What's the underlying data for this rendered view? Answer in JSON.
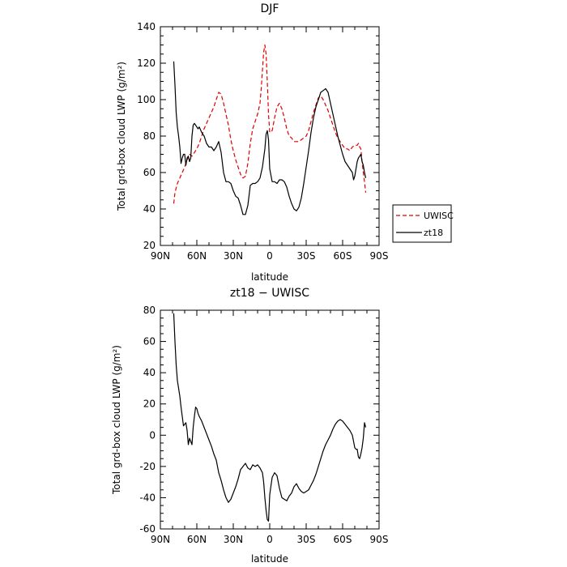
{
  "chart_data": [
    {
      "type": "line",
      "title": "DJF",
      "xlabel": "latitude",
      "ylabel": "Total grd-box cloud LWP (g/m²)",
      "ylim": [
        20,
        140
      ],
      "yticks": [
        20,
        40,
        60,
        80,
        100,
        120,
        140
      ],
      "xlim": [
        90,
        -90
      ],
      "xticks": [
        90,
        60,
        30,
        0,
        -30,
        -60,
        -90
      ],
      "xticklabels": [
        "90N",
        "60N",
        "30N",
        "0",
        "30S",
        "60S",
        "90S"
      ],
      "legend": "outside-right",
      "series": [
        {
          "name": "UWISC",
          "color": "#e00000",
          "dash": true,
          "x": [
            79,
            78,
            76,
            74,
            72,
            70,
            68,
            66,
            64,
            62,
            60,
            58,
            56,
            54,
            52,
            50,
            48,
            46,
            44,
            42,
            40,
            38,
            36,
            34,
            32,
            30,
            28,
            26,
            24,
            22,
            20,
            18,
            16,
            14,
            12,
            10,
            8,
            7,
            6,
            5,
            4,
            3,
            2,
            1,
            0,
            -2,
            -4,
            -6,
            -8,
            -10,
            -12,
            -14,
            -16,
            -18,
            -20,
            -22,
            -24,
            -26,
            -28,
            -30,
            -32,
            -34,
            -36,
            -38,
            -40,
            -42,
            -44,
            -46,
            -48,
            -50,
            -52,
            -54,
            -56,
            -58,
            -60,
            -62,
            -64,
            -66,
            -68,
            -70,
            -72,
            -73,
            -74,
            -75,
            -76,
            -77,
            -78,
            -79
          ],
          "y": [
            43,
            49,
            54,
            57,
            60,
            63,
            67,
            70,
            69,
            71,
            73,
            76,
            80,
            84,
            87,
            90,
            93,
            96,
            100,
            104,
            103,
            98,
            92,
            86,
            78,
            72,
            67,
            63,
            59,
            57,
            58,
            65,
            76,
            84,
            88,
            92,
            98,
            106,
            116,
            126,
            130,
            125,
            110,
            92,
            82,
            83,
            90,
            96,
            98,
            95,
            90,
            84,
            80,
            79,
            77,
            77,
            77,
            78,
            79,
            80,
            83,
            88,
            93,
            97,
            101,
            102,
            100,
            97,
            94,
            90,
            86,
            82,
            79,
            77,
            75,
            73,
            73,
            72,
            74,
            75,
            75,
            76,
            74,
            73,
            66,
            60,
            55,
            49
          ]
        },
        {
          "name": "zt18",
          "color": "#000000",
          "dash": false,
          "x": [
            79,
            78,
            77,
            76,
            75,
            74,
            73,
            72,
            71,
            70,
            69,
            68,
            67,
            66,
            65,
            64,
            63,
            62,
            61,
            60,
            59,
            58,
            56,
            54,
            52,
            50,
            48,
            46,
            44,
            42,
            40,
            38,
            36,
            34,
            32,
            30,
            28,
            26,
            24,
            22,
            20,
            18,
            16,
            14,
            12,
            10,
            8,
            6,
            4,
            3,
            2,
            1,
            0,
            -2,
            -4,
            -6,
            -8,
            -10,
            -12,
            -14,
            -16,
            -18,
            -20,
            -22,
            -24,
            -26,
            -28,
            -30,
            -32,
            -34,
            -36,
            -38,
            -40,
            -42,
            -44,
            -46,
            -48,
            -50,
            -52,
            -54,
            -56,
            -58,
            -60,
            -62,
            -64,
            -66,
            -68,
            -69,
            -70,
            -71,
            -72,
            -73,
            -74,
            -75,
            -76,
            -77,
            -78,
            -79
          ],
          "y": [
            121,
            108,
            93,
            85,
            80,
            74,
            65,
            68,
            70,
            70,
            64,
            68,
            69,
            66,
            68,
            80,
            86,
            87,
            86,
            85,
            84,
            85,
            82,
            80,
            76,
            74,
            74,
            72,
            74,
            77,
            71,
            60,
            55,
            55,
            54,
            50,
            47,
            46,
            42,
            37,
            37,
            42,
            53,
            54,
            54,
            55,
            57,
            63,
            73,
            81,
            83,
            78,
            62,
            55,
            55,
            54,
            56,
            56,
            55,
            52,
            47,
            43,
            40,
            39,
            41,
            46,
            54,
            63,
            72,
            82,
            90,
            96,
            100,
            104,
            105,
            106,
            104,
            98,
            92,
            86,
            80,
            75,
            70,
            66,
            64,
            62,
            60,
            56,
            58,
            62,
            66,
            68,
            69,
            70,
            66,
            64,
            60,
            57
          ]
        }
      ]
    },
    {
      "type": "line",
      "title": "zt18 − UWISC",
      "xlabel": "latitude",
      "ylabel": "Total grd-box cloud LWP (g/m²)",
      "ylim": [
        -60,
        80
      ],
      "yticks": [
        -60,
        -40,
        -20,
        0,
        20,
        40,
        60,
        80
      ],
      "xlim": [
        90,
        -90
      ],
      "xticks": [
        90,
        60,
        30,
        0,
        -30,
        -60,
        -90
      ],
      "xticklabels": [
        "90N",
        "60N",
        "30N",
        "0",
        "30S",
        "60S",
        "90S"
      ],
      "series": [
        {
          "color": "#000000",
          "dash": false,
          "x": [
            79,
            78,
            77,
            76,
            75,
            74,
            73,
            72,
            71,
            70,
            69,
            68,
            67,
            66,
            65,
            64,
            63,
            62,
            61,
            60,
            59,
            58,
            56,
            54,
            52,
            50,
            48,
            46,
            44,
            42,
            40,
            38,
            36,
            34,
            32,
            30,
            28,
            26,
            24,
            22,
            20,
            18,
            16,
            14,
            12,
            10,
            8,
            6,
            5,
            4,
            3,
            2,
            1,
            0,
            -2,
            -4,
            -6,
            -8,
            -10,
            -12,
            -14,
            -16,
            -18,
            -20,
            -22,
            -24,
            -26,
            -28,
            -30,
            -32,
            -34,
            -36,
            -38,
            -40,
            -42,
            -44,
            -46,
            -48,
            -50,
            -52,
            -54,
            -56,
            -58,
            -60,
            -62,
            -64,
            -66,
            -68,
            -69,
            -70,
            -71,
            -72,
            -73,
            -74,
            -75,
            -76,
            -77,
            -78,
            -79
          ],
          "y": [
            78,
            60,
            45,
            35,
            30,
            25,
            18,
            12,
            6,
            7,
            8,
            3,
            -6,
            -2,
            -4,
            -6,
            5,
            12,
            18,
            17,
            14,
            12,
            9,
            5,
            1,
            -3,
            -7,
            -12,
            -16,
            -24,
            -29,
            -35,
            -40,
            -43,
            -41,
            -37,
            -33,
            -28,
            -22,
            -20,
            -18,
            -21,
            -22,
            -19,
            -20,
            -19,
            -21,
            -24,
            -30,
            -40,
            -48,
            -54,
            -55,
            -38,
            -27,
            -24,
            -26,
            -34,
            -40,
            -41,
            -42,
            -39,
            -37,
            -33,
            -31,
            -34,
            -36,
            -37,
            -36,
            -35,
            -32,
            -29,
            -25,
            -20,
            -15,
            -10,
            -6,
            -3,
            0,
            4,
            7,
            9,
            10,
            9,
            7,
            5,
            3,
            0,
            -4,
            -8,
            -9,
            -9,
            -14,
            -15,
            -12,
            -8,
            -2,
            8,
            5
          ]
        }
      ]
    }
  ]
}
